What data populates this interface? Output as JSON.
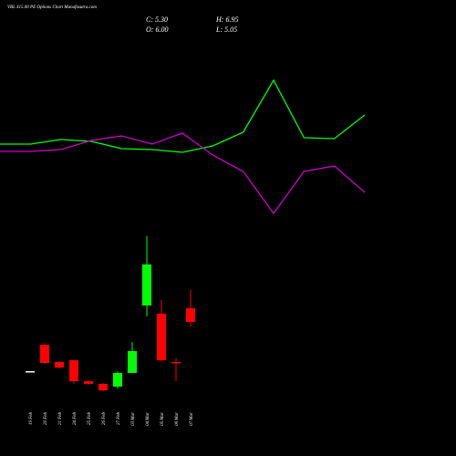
{
  "chart_data": [
    {
      "type": "candlestick",
      "title": "VBL 415.00 PE Options Chart Munafasutra.com",
      "ohlc_labels": [
        "C: 5.30",
        "O: 6.00",
        "H: 6.95",
        "L: 5.05"
      ],
      "categories": [
        "19 Feb",
        "20 Feb",
        "21 Feb",
        "24 Feb",
        "25 Feb",
        "26 Feb",
        "27 Feb",
        "03 Mar",
        "04 Mar",
        "05 Mar",
        "06 Mar",
        "07 Mar"
      ],
      "open": [
        2.78,
        4.13,
        3.25,
        3.34,
        2.27,
        2.13,
        1.99,
        2.69,
        6.14,
        5.72,
        3.25,
        6.0
      ],
      "high": [
        2.78,
        4.23,
        3.29,
        3.34,
        2.31,
        2.17,
        2.78,
        4.27,
        9.69,
        6.42,
        3.43,
        6.95
      ],
      "low": [
        2.78,
        3.15,
        2.92,
        2.13,
        2.08,
        1.75,
        1.89,
        2.69,
        5.58,
        3.25,
        2.27,
        5.05
      ],
      "close": [
        2.78,
        3.2,
        2.97,
        2.27,
        2.13,
        1.8,
        2.69,
        3.81,
        8.24,
        3.34,
        3.2,
        5.3
      ],
      "up_color": "#00ff00",
      "down_color": "#ff0000",
      "flat_color": "#ffffff",
      "ylim": [
        -1.56,
        21.77
      ]
    },
    {
      "type": "line",
      "series": [
        {
          "color": "#00ff00",
          "values": [
            46,
            46,
            48.5,
            47.5,
            43.5,
            43,
            41.5,
            45,
            52.5,
            81,
            49.5,
            49,
            62
          ]
        },
        {
          "color": "#cc00cc",
          "values": [
            42,
            42,
            43,
            48,
            50.5,
            46,
            52,
            40,
            31,
            8,
            31,
            34,
            19.5
          ]
        }
      ],
      "ylim": [
        0,
        125
      ]
    }
  ]
}
